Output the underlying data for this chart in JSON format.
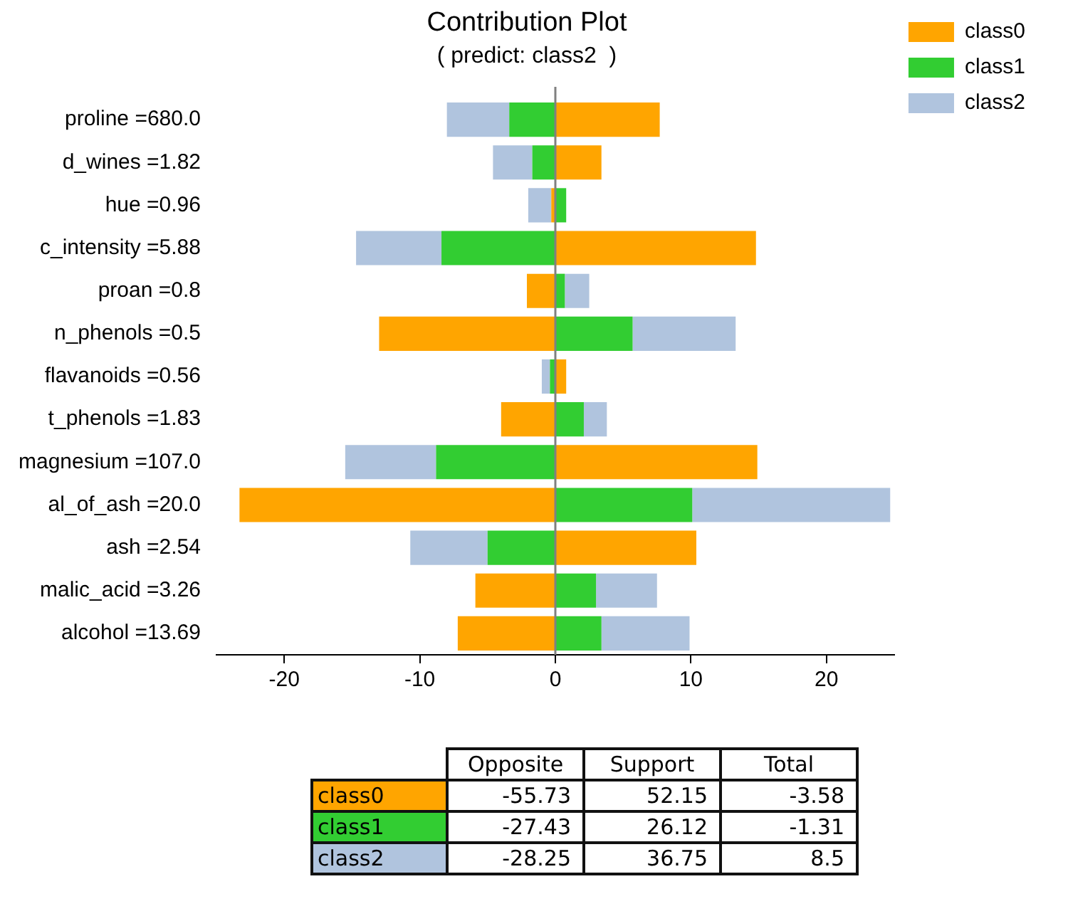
{
  "chart_data": [
    {
      "type": "bar",
      "orientation": "horizontal",
      "stacked": true,
      "title": "Contribution Plot",
      "subtitle": "( predict: class2  )",
      "categories": [
        "proline =680.0",
        "d_wines =1.82",
        "hue =0.96",
        "c_intensity =5.88",
        "proan =0.8",
        "n_phenols =0.5",
        "flavanoids =0.56",
        "t_phenols =1.83",
        "magnesium =107.0",
        "al_of_ash =20.0",
        "ash =2.54",
        "malic_acid =3.26",
        "alcohol =13.69"
      ],
      "series": [
        {
          "name": "class0",
          "color": "#ffa500",
          "values": [
            7.7,
            3.4,
            -0.3,
            14.8,
            -2.1,
            -13.0,
            0.8,
            -4.0,
            14.9,
            -23.3,
            10.4,
            -5.9,
            -7.2
          ]
        },
        {
          "name": "class1",
          "color": "#32cd32",
          "values": [
            -3.4,
            -1.7,
            0.8,
            -8.4,
            0.7,
            5.7,
            -0.4,
            2.1,
            -8.8,
            10.1,
            -5.0,
            3.0,
            3.4
          ]
        },
        {
          "name": "class2",
          "color": "#b0c4de",
          "values": [
            -4.6,
            -2.9,
            -1.7,
            -6.3,
            1.8,
            7.6,
            -0.6,
            1.7,
            -6.7,
            14.6,
            -5.7,
            4.5,
            6.5
          ]
        }
      ],
      "xlim": [
        -25,
        25
      ],
      "xticks": [
        -20,
        -10,
        0,
        10,
        20
      ],
      "grid": false,
      "legend": "right",
      "ref_lines": [
        {
          "axis": "x",
          "value": 0,
          "color": "#808080"
        }
      ]
    },
    {
      "type": "other",
      "categories": [
        "class0",
        "class1",
        "class2"
      ],
      "colors": [
        "#ffa500",
        "#32cd32",
        "#b0c4de"
      ],
      "series": [
        {
          "name": "Opposite",
          "values": [
            -55.73,
            -27.43,
            -28.25
          ]
        },
        {
          "name": "Support",
          "values": [
            52.15,
            26.12,
            36.75
          ]
        },
        {
          "name": "Total",
          "values": [
            -3.58,
            -1.31,
            8.5
          ]
        }
      ],
      "data_labels": true
    }
  ]
}
